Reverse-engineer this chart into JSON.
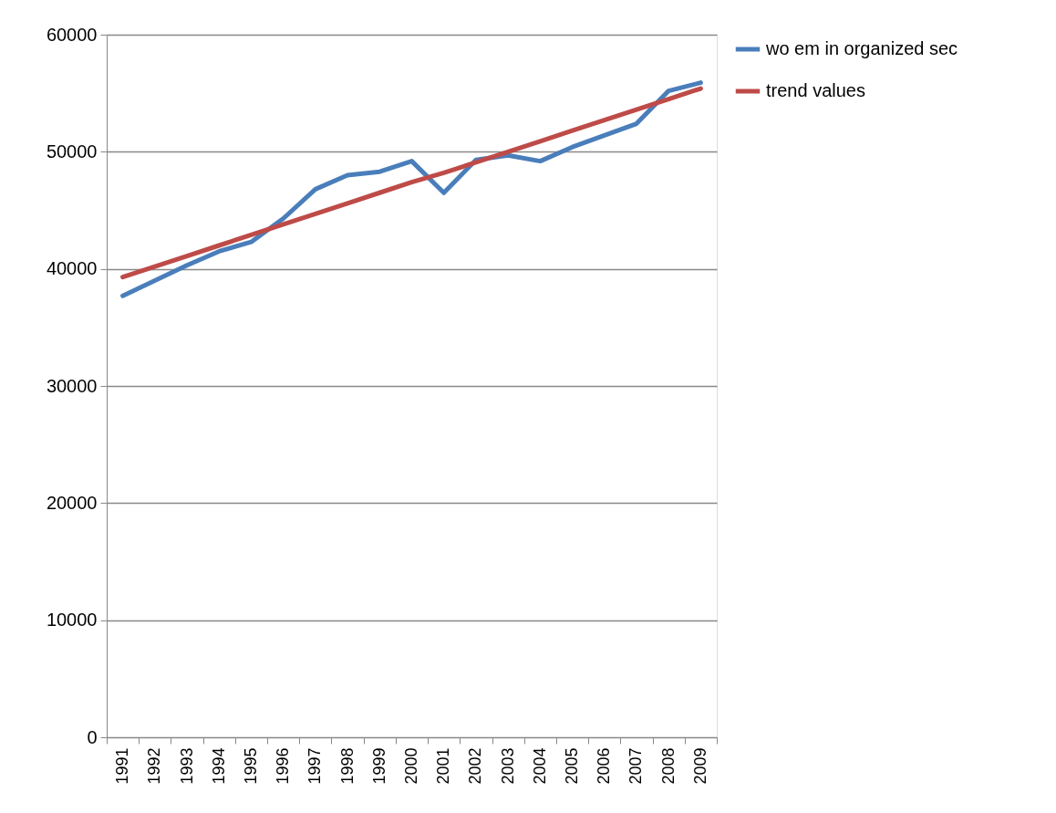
{
  "chart_data": {
    "type": "line",
    "categories": [
      "1991",
      "1992",
      "1993",
      "1994",
      "1995",
      "1996",
      "1997",
      "1998",
      "1999",
      "2000",
      "2001",
      "2002",
      "2003",
      "2004",
      "2005",
      "2006",
      "2007",
      "2008",
      "2009"
    ],
    "series": [
      {
        "name": "wo em in organized sec",
        "color": "#4a7ebb",
        "values": [
          37700,
          39000,
          40300,
          41500,
          42300,
          44300,
          46800,
          48000,
          48300,
          49200,
          46500,
          49300,
          49700,
          49200,
          50400,
          51400,
          52400,
          55200,
          55900
        ]
      },
      {
        "name": "trend values",
        "color": "#be4b48",
        "values": [
          39300,
          40200,
          41100,
          42000,
          42900,
          43800,
          44700,
          45600,
          46500,
          47400,
          48200,
          49100,
          50000,
          50900,
          51800,
          52700,
          53600,
          54500,
          55400
        ]
      }
    ],
    "ylim": [
      0,
      60000
    ],
    "yticks": [
      0,
      10000,
      20000,
      30000,
      40000,
      50000,
      60000
    ],
    "grid": "y",
    "legend": "right",
    "marker": "none",
    "line_style": "solid"
  }
}
